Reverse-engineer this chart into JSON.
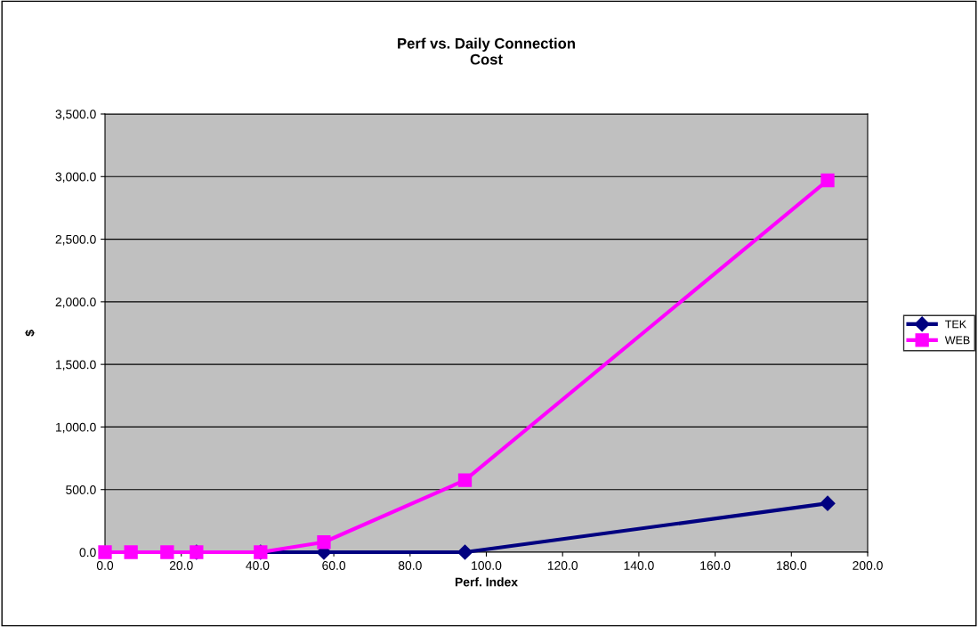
{
  "chart_data": {
    "type": "line",
    "title": "Perf vs. Daily Connection\nCost",
    "xlabel": "Perf. Index",
    "ylabel": "$",
    "series": [
      {
        "name": "TEK",
        "color": "#000080",
        "marker": "diamond",
        "x": [
          24.0,
          40.8,
          57.4,
          94.4,
          189.5
        ],
        "values": [
          0,
          0,
          0,
          0,
          390
        ]
      },
      {
        "name": "WEB",
        "color": "#ff00ff",
        "marker": "square",
        "x": [
          0.0,
          6.8,
          16.3,
          24.0,
          40.8,
          57.4,
          94.4,
          189.5
        ],
        "values": [
          0,
          0,
          0,
          0,
          0,
          80,
          575,
          2970
        ]
      }
    ],
    "xlim": [
      0,
      200
    ],
    "xticks": [
      {
        "value": 0,
        "label": "0.0"
      },
      {
        "value": 20,
        "label": "20.0"
      },
      {
        "value": 40,
        "label": "40.0"
      },
      {
        "value": 60,
        "label": "60.0"
      },
      {
        "value": 80,
        "label": "80.0"
      },
      {
        "value": 100,
        "label": "100.0"
      },
      {
        "value": 120,
        "label": "120.0"
      },
      {
        "value": 140,
        "label": "140.0"
      },
      {
        "value": 160,
        "label": "160.0"
      },
      {
        "value": 180,
        "label": "180.0"
      },
      {
        "value": 200,
        "label": "200.0"
      }
    ],
    "ylim": [
      0,
      3500
    ],
    "yticks": [
      {
        "value": 0,
        "label": "0.0"
      },
      {
        "value": 500,
        "label": "500.0"
      },
      {
        "value": 1000,
        "label": "1,000.0"
      },
      {
        "value": 1500,
        "label": "1,500.0"
      },
      {
        "value": 2000,
        "label": "2,000.0"
      },
      {
        "value": 2500,
        "label": "2,500.0"
      },
      {
        "value": 3000,
        "label": "3,000.0"
      },
      {
        "value": 3500,
        "label": "3,500.0"
      }
    ],
    "grid": "y",
    "legend": "right",
    "line_style": "solid"
  }
}
